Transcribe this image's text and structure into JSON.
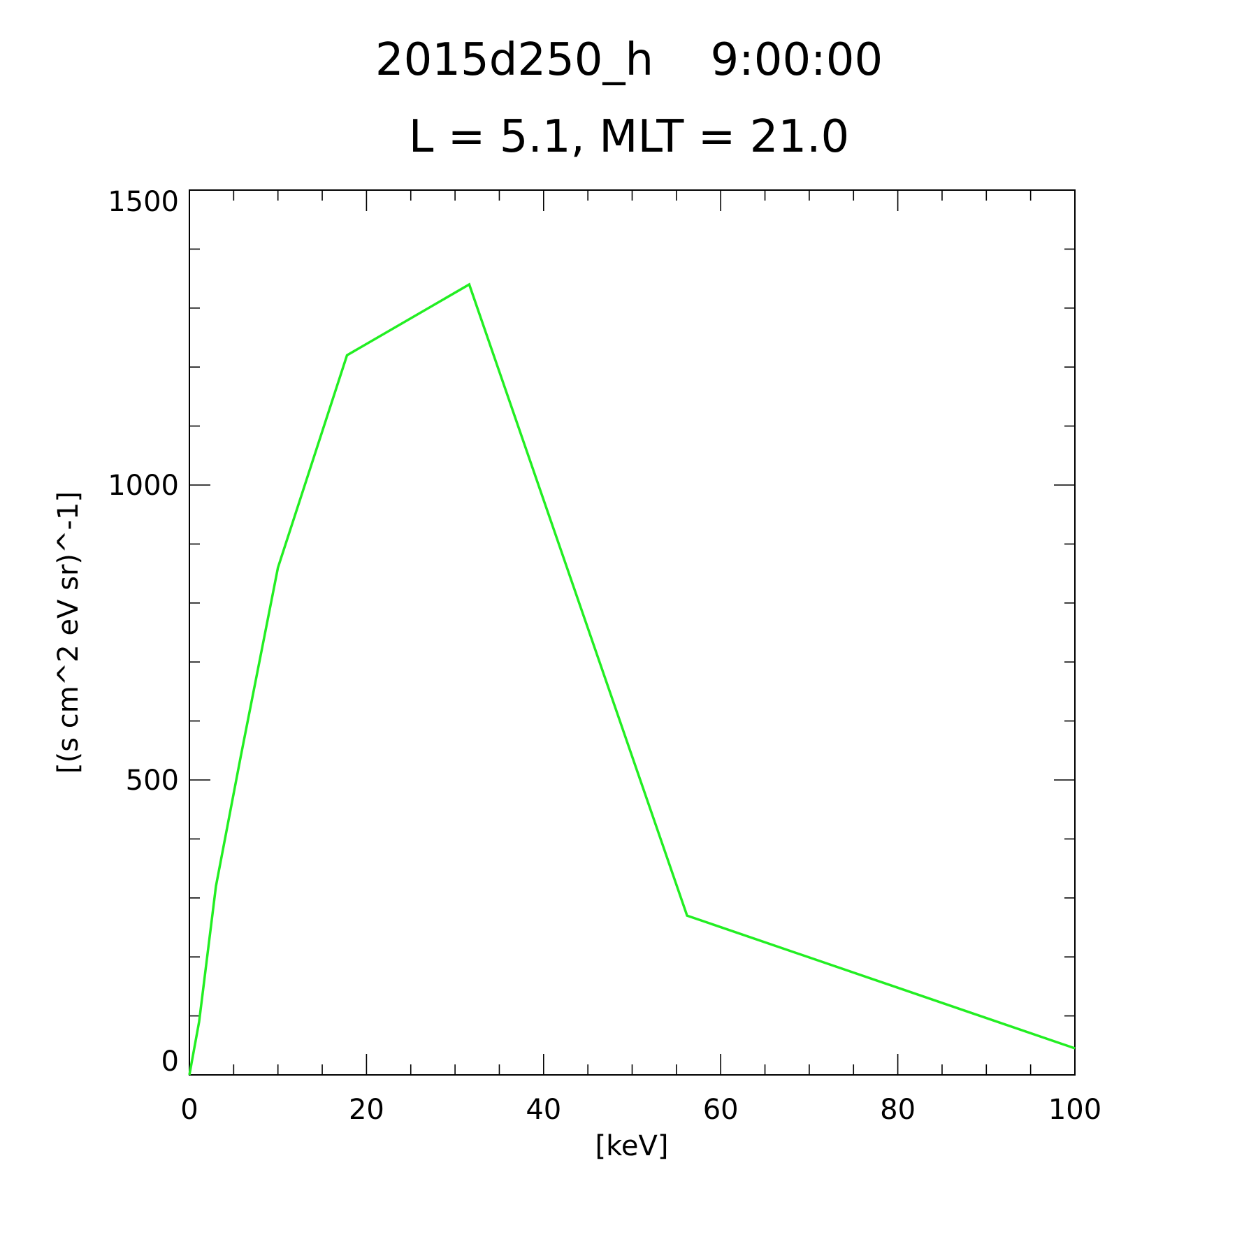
{
  "chart_data": {
    "type": "line",
    "title": "2015d250_h    9:00:00",
    "subtitle": "L = 5.1, MLT = 21.0",
    "xlabel": "[keV]",
    "ylabel": "[(s cm^2 eV sr)^-1]",
    "xlim": [
      0,
      100
    ],
    "ylim": [
      0,
      1500
    ],
    "x_ticks": [
      0,
      20,
      40,
      60,
      80,
      100
    ],
    "y_ticks": [
      0,
      500,
      1000,
      1500
    ],
    "x_minor_step": 5,
    "y_minor_step": 100,
    "grid": false,
    "legend": "none",
    "series": [
      {
        "color": "#22ee22",
        "x": [
          0,
          1.1,
          3.0,
          5.8,
          10.0,
          17.8,
          31.6,
          56.2,
          100.0
        ],
        "y": [
          0,
          90,
          320,
          540,
          860,
          1220,
          1340,
          270,
          45
        ]
      }
    ]
  }
}
